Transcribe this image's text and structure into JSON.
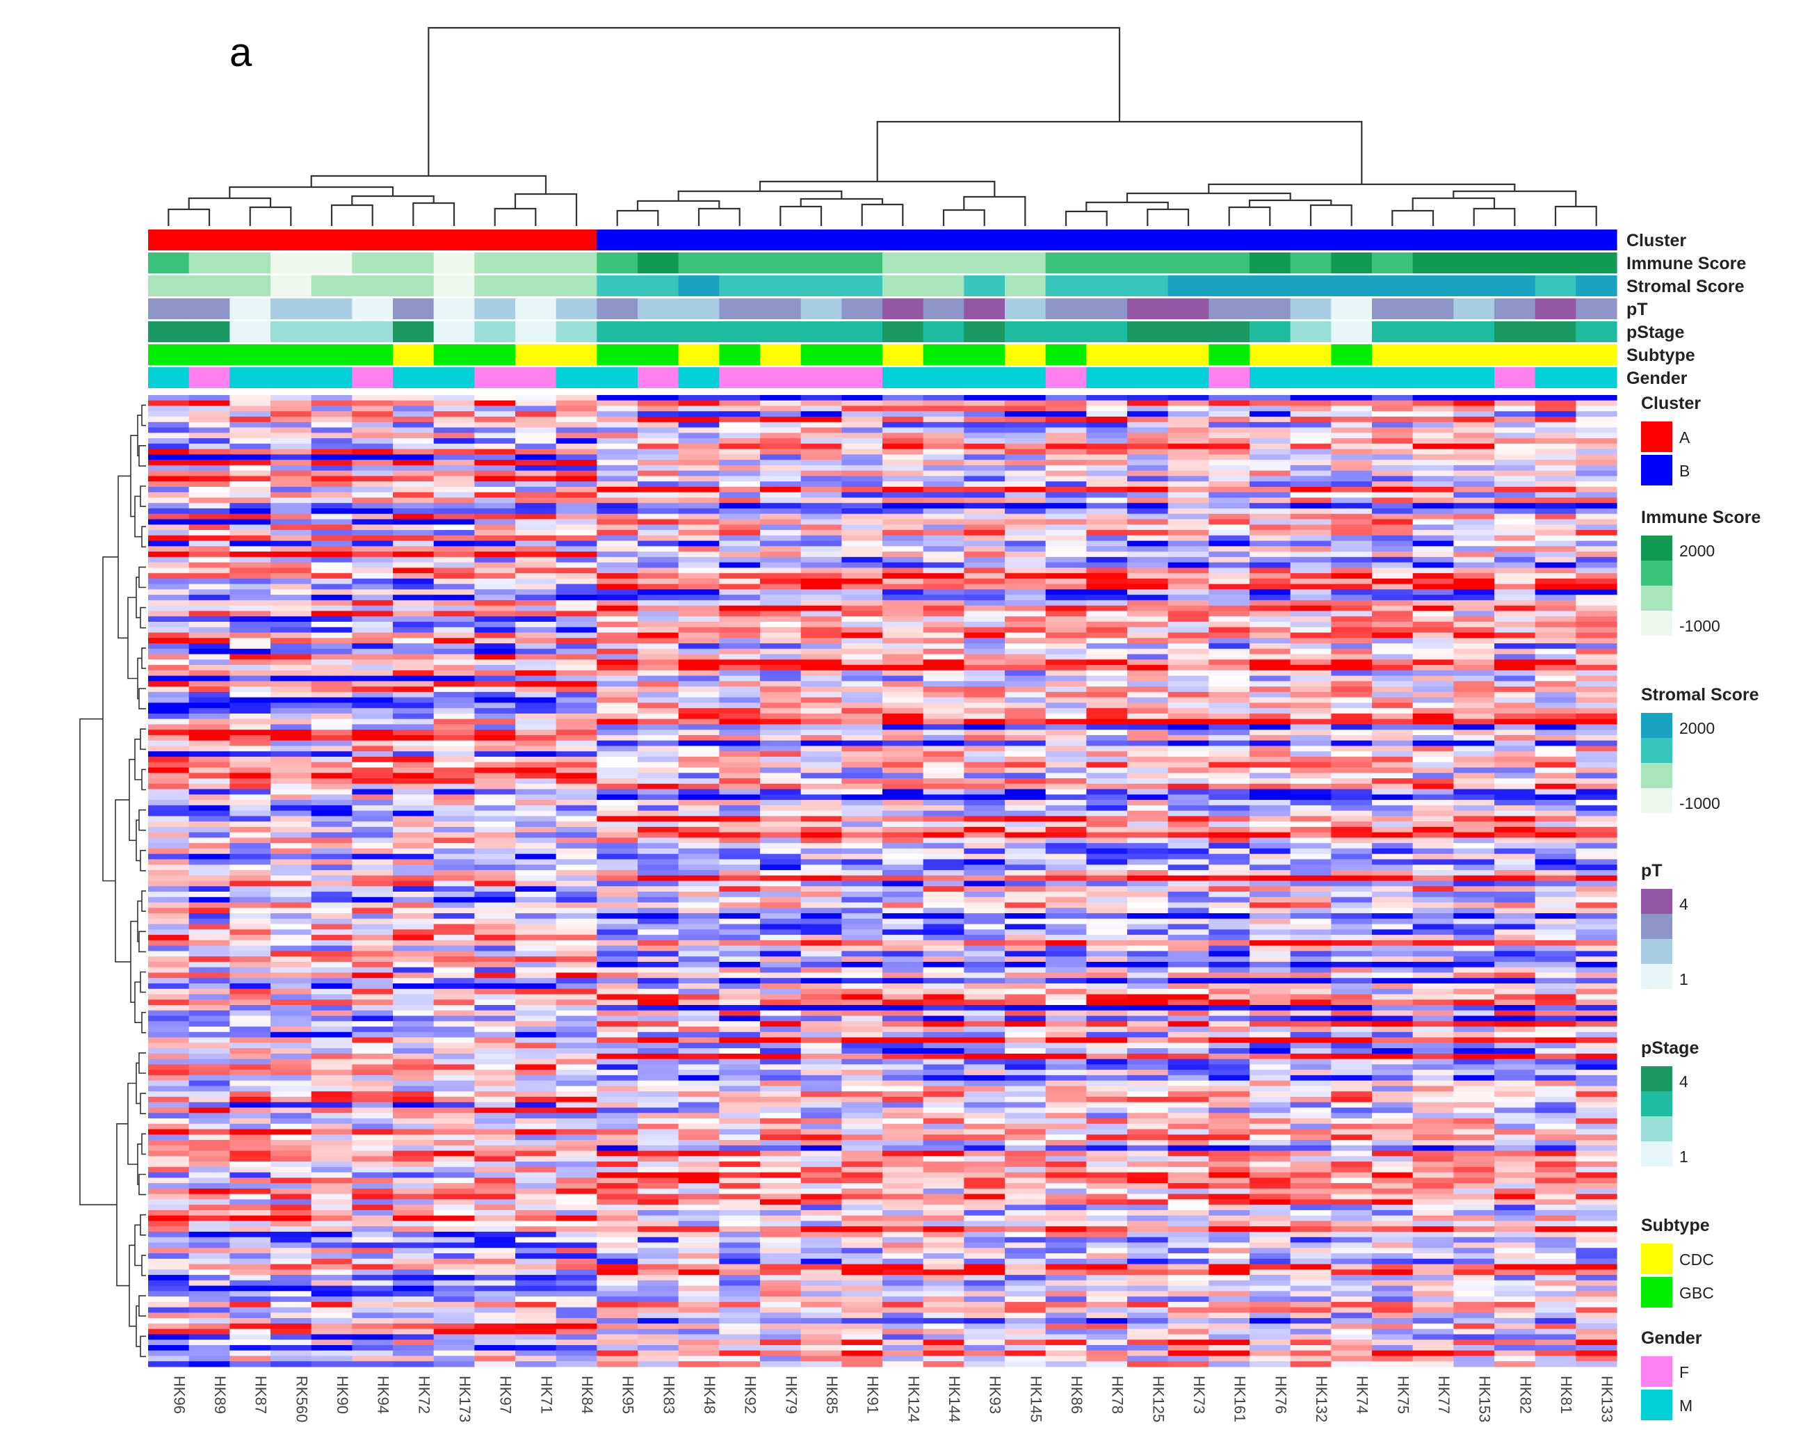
{
  "chart_data": {
    "type": "heatmap",
    "panel_label": "a",
    "samples": [
      "HK96",
      "HK89",
      "HK87",
      "RK560",
      "HK90",
      "HK94",
      "HK72",
      "HK173",
      "HK97",
      "HK71",
      "HK84",
      "HK95",
      "HK83",
      "HK48",
      "HK92",
      "HK79",
      "HK85",
      "HK91",
      "HK124",
      "HK144",
      "HK93",
      "HK145",
      "HK86",
      "HK78",
      "HK125",
      "HK73",
      "HK161",
      "HK76",
      "HK132",
      "HK74",
      "HK75",
      "HK77",
      "HK153",
      "HK82",
      "HK81",
      "HK133"
    ],
    "column_dendrogram": true,
    "row_dendrogram": true,
    "annotation_tracks": [
      {
        "name": "Cluster",
        "levels": [
          "A",
          "B"
        ],
        "colors": {
          "A": "#ff0000",
          "B": "#0000ff"
        },
        "values": [
          "A",
          "A",
          "A",
          "A",
          "A",
          "A",
          "A",
          "A",
          "A",
          "A",
          "A",
          "B",
          "B",
          "B",
          "B",
          "B",
          "B",
          "B",
          "B",
          "B",
          "B",
          "B",
          "B",
          "B",
          "B",
          "B",
          "B",
          "B",
          "B",
          "B",
          "B",
          "B",
          "B",
          "B",
          "B",
          "B"
        ]
      },
      {
        "name": "Immune Score",
        "scale": {
          "max_label": "2000",
          "min_label": "-1000",
          "max": 2000,
          "min": -1000
        },
        "colors": [
          "#eef8ee",
          "#a9e4ba",
          "#3bc27a",
          "#119a52"
        ],
        "values": [
          2,
          1,
          1,
          0,
          0,
          1,
          1,
          0,
          1,
          1,
          1,
          2,
          3,
          2,
          2,
          2,
          2,
          2,
          1,
          1,
          1,
          1,
          2,
          2,
          2,
          2,
          2,
          3,
          2,
          3,
          2,
          3,
          3,
          3,
          3,
          3
        ]
      },
      {
        "name": "Stromal Score",
        "scale": {
          "max_label": "2000",
          "min_label": "-1000",
          "max": 2000,
          "min": -1000
        },
        "colors": [
          "#eef8ee",
          "#a9e4ba",
          "#36c6bb",
          "#19a3c3"
        ],
        "values": [
          1,
          1,
          1,
          0,
          1,
          1,
          1,
          0,
          1,
          1,
          1,
          2,
          2,
          3,
          2,
          2,
          2,
          2,
          1,
          1,
          2,
          1,
          2,
          2,
          2,
          3,
          3,
          3,
          3,
          3,
          3,
          3,
          3,
          3,
          2,
          3
        ]
      },
      {
        "name": "pT",
        "scale": {
          "max_label": "4",
          "min_label": "1",
          "max": 4,
          "min": 1
        },
        "colors": [
          "#e8f6f7",
          "#a9cde3",
          "#8d95c9",
          "#9556a6"
        ],
        "values": [
          2,
          2,
          0,
          1,
          1,
          0,
          2,
          0,
          1,
          0,
          1,
          2,
          1,
          1,
          2,
          2,
          1,
          2,
          3,
          2,
          3,
          1,
          2,
          2,
          3,
          3,
          2,
          2,
          1,
          0,
          2,
          2,
          1,
          2,
          3,
          2
        ]
      },
      {
        "name": "pStage",
        "scale": {
          "max_label": "4",
          "min_label": "1",
          "max": 4,
          "min": 1
        },
        "colors": [
          "#e6f6f8",
          "#99dfd7",
          "#1dbba0",
          "#1a9a62"
        ],
        "values": [
          3,
          3,
          0,
          1,
          1,
          1,
          3,
          0,
          1,
          0,
          1,
          2,
          2,
          2,
          2,
          2,
          2,
          2,
          3,
          2,
          3,
          2,
          2,
          2,
          3,
          3,
          3,
          2,
          1,
          0,
          2,
          2,
          2,
          3,
          3,
          2
        ]
      },
      {
        "name": "Subtype",
        "levels": [
          "CDC",
          "GBC"
        ],
        "colors": {
          "CDC": "#ffff00",
          "GBC": "#00ee00"
        },
        "values": [
          "GBC",
          "GBC",
          "GBC",
          "GBC",
          "GBC",
          "GBC",
          "CDC",
          "GBC",
          "GBC",
          "CDC",
          "CDC",
          "GBC",
          "GBC",
          "CDC",
          "GBC",
          "CDC",
          "GBC",
          "GBC",
          "CDC",
          "GBC",
          "GBC",
          "CDC",
          "GBC",
          "CDC",
          "CDC",
          "CDC",
          "GBC",
          "CDC",
          "CDC",
          "GBC",
          "CDC",
          "CDC",
          "CDC",
          "CDC",
          "CDC",
          "CDC"
        ]
      },
      {
        "name": "Gender",
        "levels": [
          "F",
          "M"
        ],
        "colors": {
          "F": "#ff80f0",
          "M": "#00d0d8"
        },
        "values": [
          "M",
          "F",
          "M",
          "M",
          "M",
          "F",
          "M",
          "M",
          "F",
          "F",
          "M",
          "M",
          "F",
          "M",
          "F",
          "F",
          "F",
          "F",
          "M",
          "M",
          "M",
          "M",
          "F",
          "M",
          "M",
          "M",
          "F",
          "M",
          "M",
          "M",
          "M",
          "M",
          "M",
          "F",
          "M",
          "M"
        ]
      }
    ],
    "legend": {
      "cluster": {
        "title": "Cluster",
        "entries": [
          "A",
          "B"
        ]
      },
      "immune": {
        "title": "Immune Score",
        "max": "2000",
        "min": "-1000"
      },
      "stromal": {
        "title": "Stromal Score",
        "max": "2000",
        "min": "-1000"
      },
      "pt": {
        "title": "pT",
        "max": "4",
        "min": "1"
      },
      "pstage": {
        "title": "pStage",
        "max": "4",
        "min": "1"
      },
      "subtype": {
        "title": "Subtype",
        "entries": [
          "CDC",
          "GBC"
        ]
      },
      "gender": {
        "title": "Gender",
        "entries": [
          "F",
          "M"
        ]
      }
    },
    "heatmap_colors": {
      "low": "#0000ff",
      "mid": "#ffffff",
      "high": "#ff0000"
    },
    "n_rows": 180,
    "value_range": [
      -1,
      1
    ]
  }
}
